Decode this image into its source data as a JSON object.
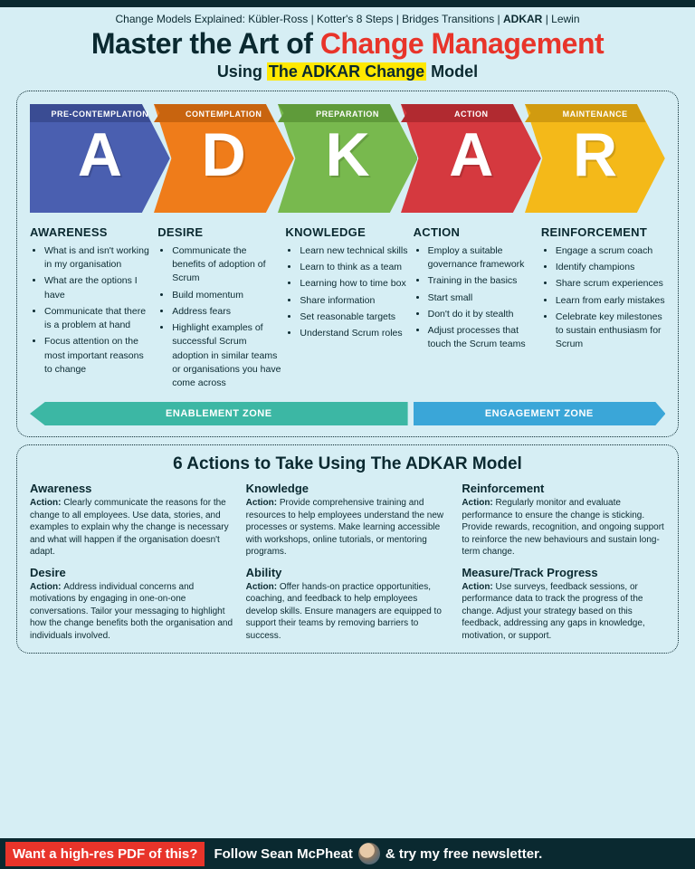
{
  "breadcrumb": {
    "prefix": "Change Models Explained: Kübler-Ross | Kotter's 8 Steps | Bridges Transitions | ",
    "bold": "ADKAR",
    "suffix": " | Lewin"
  },
  "title": {
    "a": "Master the Art of ",
    "b": "Change Management"
  },
  "subtitle": {
    "a": "Using ",
    "hl": "The ADKAR Change",
    "b": " Model"
  },
  "arrows": [
    {
      "stage": "PRE-CONTEMPLATION",
      "letter": "A",
      "color": "#4a5fb0",
      "dark": "#3a4c93"
    },
    {
      "stage": "CONTEMPLATION",
      "letter": "D",
      "color": "#ef7c1a",
      "dark": "#c8640f"
    },
    {
      "stage": "PREPARATION",
      "letter": "K",
      "color": "#78b94e",
      "dark": "#5f9b3a"
    },
    {
      "stage": "ACTION",
      "letter": "A",
      "color": "#d5393f",
      "dark": "#b12a30"
    },
    {
      "stage": "MAINTENANCE",
      "letter": "R",
      "color": "#f4b919",
      "dark": "#d19b10"
    }
  ],
  "columns": [
    {
      "title": "AWARENESS",
      "items": [
        "What is and isn't working in my organisation",
        "What are the options I have",
        "Communicate that there is a problem at hand",
        "Focus attention on the most important reasons to change"
      ]
    },
    {
      "title": "DESIRE",
      "items": [
        "Communicate the benefits of adoption of Scrum",
        "Build momentum",
        "Address fears",
        "Highlight examples of successful Scrum adoption in similar teams or organisations you have come across"
      ]
    },
    {
      "title": "KNOWLEDGE",
      "items": [
        "Learn new technical skills",
        "Learn to think as a team",
        "Learning how to time box",
        "Share information",
        "Set reasonable targets",
        "Understand Scrum roles"
      ]
    },
    {
      "title": "ACTION",
      "items": [
        "Employ a suitable governance framework",
        "Training in the basics",
        "Start small",
        "Don't do it by stealth",
        "Adjust processes that touch the Scrum teams"
      ]
    },
    {
      "title": "REINFORCEMENT",
      "items": [
        "Engage a scrum coach",
        "Identify champions",
        "Share scrum experiences",
        "Learn from early mistakes",
        "Celebrate key milestones to sustain enthusiasm for Scrum"
      ]
    }
  ],
  "zones": [
    {
      "label": "ENABLEMENT ZONE",
      "color": "#3cb7a4",
      "flex": 3
    },
    {
      "label": "ENGAGEMENT ZONE",
      "color": "#3aa6d8",
      "flex": 2
    }
  ],
  "panel2_title": "6 Actions to Take Using The ADKAR Model",
  "actions": [
    {
      "title": "Awareness",
      "body": "Clearly communicate the reasons for the change to all employees. Use data, stories, and examples to explain why the change is necessary and what will happen if the organisation doesn't adapt."
    },
    {
      "title": "Knowledge",
      "body": "Provide comprehensive training and resources to help employees understand the new processes or systems. Make learning accessible with workshops, online tutorials, or mentoring programs."
    },
    {
      "title": "Reinforcement",
      "body": "Regularly monitor and evaluate performance to ensure the change is sticking. Provide rewards, recognition, and ongoing support to reinforce the new behaviours and sustain long-term change."
    },
    {
      "title": "Desire",
      "body": "Address individual concerns and motivations by engaging in one-on-one conversations. Tailor your messaging to highlight how the change benefits both the organisation and individuals involved."
    },
    {
      "title": "Ability",
      "body": "Offer hands-on practice opportunities, coaching, and feedback to help employees develop skills. Ensure managers are equipped to support their teams by removing barriers to success."
    },
    {
      "title": "Measure/Track Progress",
      "body": "Use surveys, feedback sessions, or performance data to track the progress of the change. Adjust your strategy based on this feedback, addressing any gaps in knowledge, motivation, or support."
    }
  ],
  "action_prefix": "Action: ",
  "footer": {
    "cta": "Want a high-res PDF of this?",
    "a": "Follow Sean McPheat",
    "b": "& try my free newsletter."
  }
}
